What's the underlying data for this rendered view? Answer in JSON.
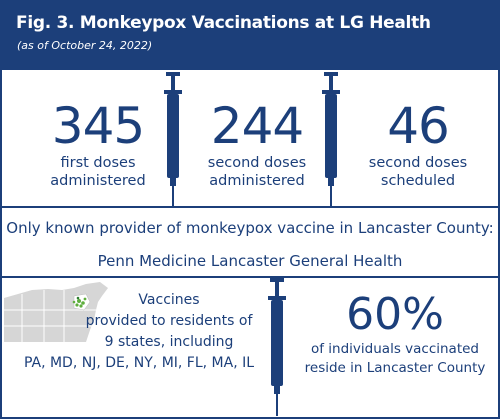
{
  "header": {
    "title": "Fig. 3. Monkeypox Vaccinations at LG Health",
    "subtitle": "(as of October 24, 2022)"
  },
  "stats": [
    {
      "value": "345",
      "line1": "first doses",
      "line2": "administered"
    },
    {
      "value": "244",
      "line1": "second doses",
      "line2": "administered"
    },
    {
      "value": "46",
      "line1": "second doses",
      "line2": "scheduled"
    }
  ],
  "provider": {
    "line1": "Only known provider of monkeypox vaccine in Lancaster County:",
    "line2": "Penn Medicine Lancaster General Health"
  },
  "vaccines": {
    "line1": "Vaccines",
    "line2": "provided to residents of",
    "line3": "9 states, including",
    "line4": "PA, MD, NJ, DE, NY, MI, FL, MA, IL"
  },
  "percent": {
    "value": "60%",
    "line1": "of individuals vaccinated",
    "line2": "reside in Lancaster County"
  },
  "colors": {
    "navy": "#1c3f7a",
    "map_gray": "#d6d6d6",
    "map_green": "#5fae3e"
  },
  "icons": [
    "syringe-icon",
    "us-map-icon"
  ]
}
